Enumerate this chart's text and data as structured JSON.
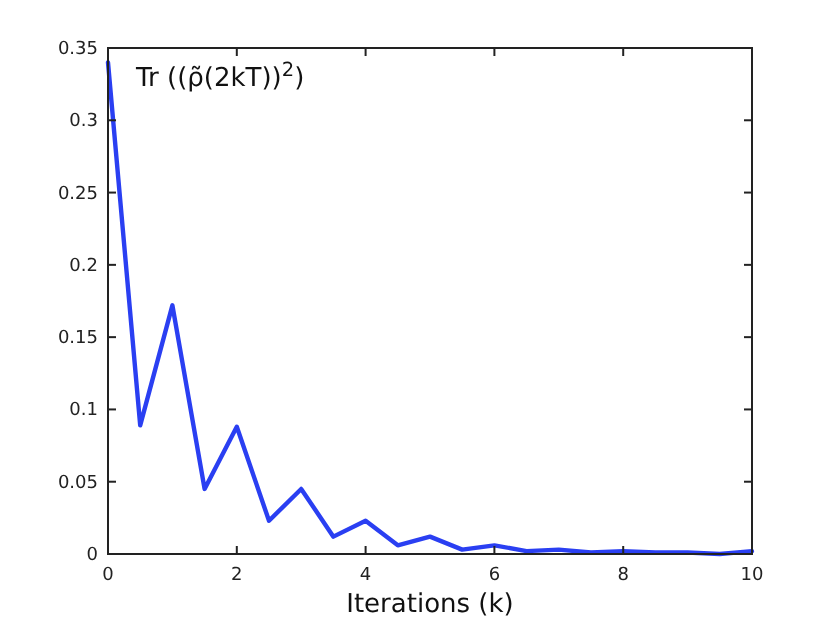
{
  "chart_data": {
    "type": "line",
    "title": "Tr ((ρ̃(2kT))$^{2}$)",
    "xlabel": "Iterations (k)",
    "x": [
      0,
      0.5,
      1,
      1.5,
      2,
      2.5,
      3,
      3.5,
      4,
      4.5,
      5,
      5.5,
      6,
      6.5,
      7,
      7.5,
      8,
      8.5,
      9,
      9.5,
      10
    ],
    "series": [
      {
        "color": "#2a3ff2",
        "values": [
          0.34,
          0.089,
          0.172,
          0.045,
          0.088,
          0.023,
          0.045,
          0.012,
          0.023,
          0.006,
          0.012,
          0.003,
          0.006,
          0.002,
          0.003,
          0.001,
          0.002,
          0.001,
          0.001,
          0,
          0.002
        ]
      }
    ],
    "xlim": [
      0,
      10
    ],
    "xticks": [
      0,
      2,
      4,
      6,
      8,
      10
    ],
    "ylim": [
      0,
      0.35
    ],
    "yticks": [
      0,
      0.05,
      0.1,
      0.15,
      0.2,
      0.25,
      0.3,
      0.35
    ],
    "grid": false,
    "marker": "none",
    "line_style": "solid"
  }
}
